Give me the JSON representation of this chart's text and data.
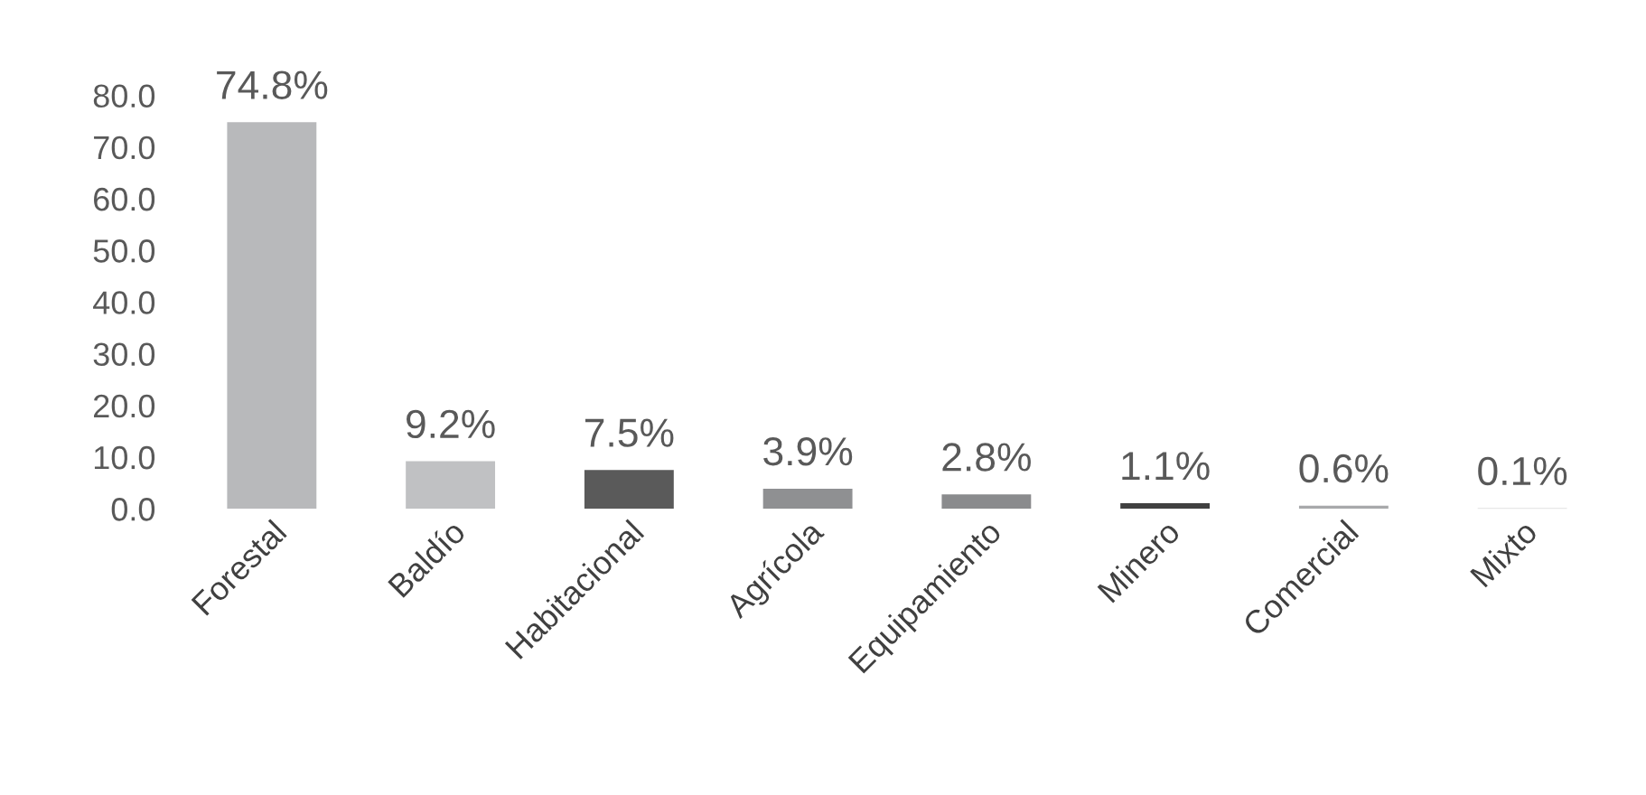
{
  "chart_data": {
    "type": "bar",
    "categories": [
      "Forestal",
      "Baldío",
      "Habitacional",
      "Agrícola",
      "Equipamiento",
      "Minero",
      "Comercial",
      "Mixto"
    ],
    "values": [
      74.8,
      9.2,
      7.5,
      3.9,
      2.8,
      1.1,
      0.6,
      0.1
    ],
    "colors": [
      "#b8b9bb",
      "#c0c1c3",
      "#5a5a5a",
      "#8f9092",
      "#8a8b8d",
      "#404040",
      "#a8a9ab",
      "#a0a1a3"
    ],
    "value_labels": [
      "74.8%",
      "9.2%",
      "7.5%",
      "3.9%",
      "2.8%",
      "1.1%",
      "0.6%",
      "0.1%"
    ],
    "ylim": [
      0,
      80
    ],
    "yticks": [
      {
        "value": 0,
        "label": "0.0"
      },
      {
        "value": 10,
        "label": "10.0"
      },
      {
        "value": 20,
        "label": "20.0"
      },
      {
        "value": 30,
        "label": "30.0"
      },
      {
        "value": 40,
        "label": "40.0"
      },
      {
        "value": 50,
        "label": "50.0"
      },
      {
        "value": 60,
        "label": "60.0"
      },
      {
        "value": 70,
        "label": "70.0"
      },
      {
        "value": 80,
        "label": "80.0"
      }
    ],
    "grid": false,
    "legend": false
  }
}
